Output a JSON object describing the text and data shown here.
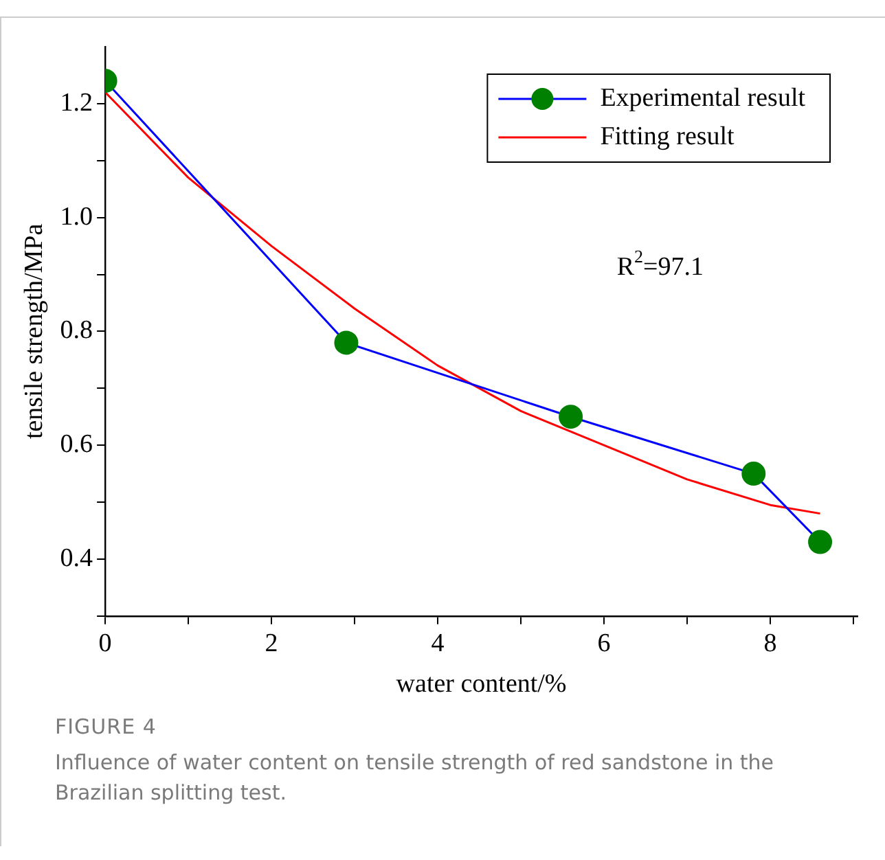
{
  "chart_data": {
    "type": "line",
    "title": "FIGURE 4",
    "xlabel": "water content/%",
    "ylabel": "tensile strength/MPa",
    "xlim": [
      0,
      9.05
    ],
    "xticks": [
      0,
      {
        "value": 1,
        "label": null
      },
      2,
      {
        "value": 3,
        "label": null
      },
      4,
      {
        "value": 5,
        "label": null
      },
      6,
      {
        "value": 7,
        "label": null
      },
      8,
      {
        "value": 9,
        "label": null
      }
    ],
    "ylim": [
      0.3,
      1.3
    ],
    "yticks": [
      {
        "value": 0.3,
        "label": null
      },
      0.4,
      {
        "value": 0.5,
        "label": null
      },
      0.6,
      {
        "value": 0.7,
        "label": null
      },
      0.8,
      {
        "value": 0.9,
        "label": null
      },
      {
        "value": 1,
        "label": "1.0"
      },
      {
        "value": 1.1,
        "label": null
      },
      1.2
    ],
    "legend": "top right",
    "grid": false,
    "series": [
      {
        "name": "Experimental result",
        "color": "#0000ff",
        "colors": [
          "#008000",
          "#008000",
          "#008000",
          "#008000",
          "#008000"
        ],
        "marker": "circle",
        "x": [
          0,
          2.9,
          5.6,
          7.8,
          8.6
        ],
        "values": [
          1.24,
          0.78,
          0.65,
          0.55,
          0.43
        ]
      },
      {
        "name": "Fitting result",
        "color": "#ff0000",
        "marker": "none",
        "x": [
          0,
          1,
          2,
          3,
          4,
          5,
          6,
          7,
          8,
          8.6
        ],
        "values": [
          1.22,
          1.07,
          0.95,
          0.84,
          0.74,
          0.66,
          0.6,
          0.54,
          0.495,
          0.48
        ]
      }
    ],
    "annotations": [
      "R$^{2}$=97.1",
      "Influence of water content on tensile strength of red sandstone in the Brazilian splitting test."
    ]
  }
}
